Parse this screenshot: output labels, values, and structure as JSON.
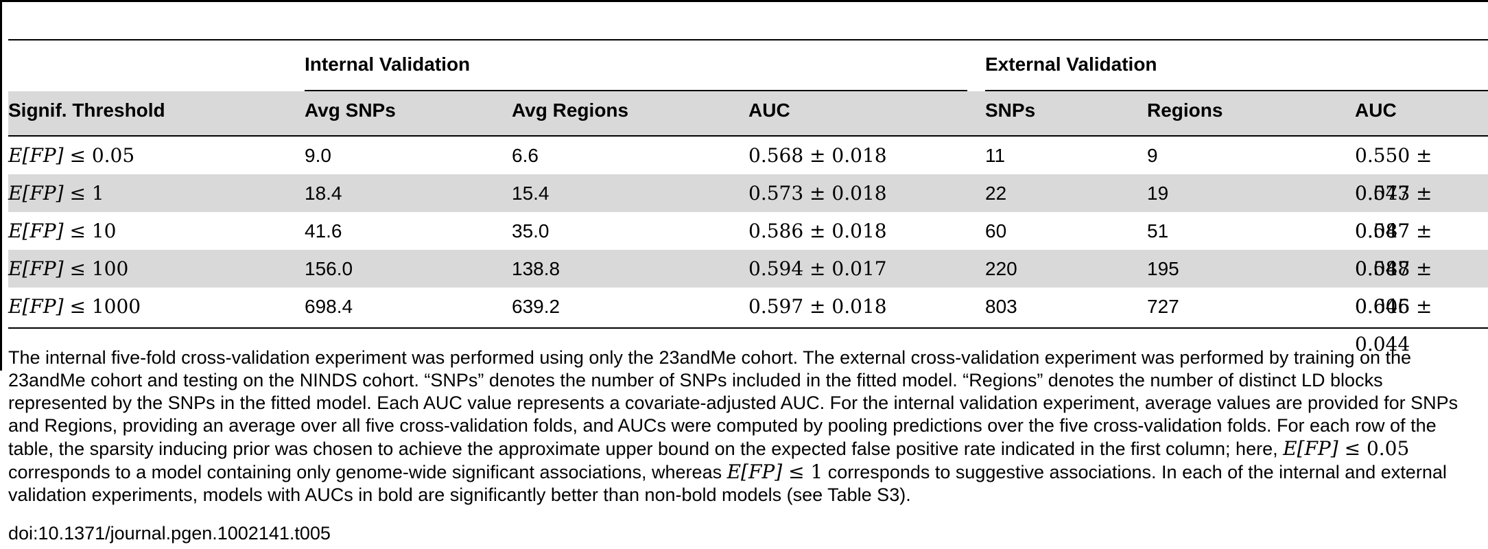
{
  "table": {
    "group_headers": {
      "internal": "Internal Validation",
      "external": "External Validation"
    },
    "columns": {
      "threshold": "Signif. Threshold",
      "avg_snps": "Avg SNPs",
      "avg_regions": "Avg Regions",
      "int_auc": "AUC",
      "snps": "SNPs",
      "regions": "Regions",
      "ext_auc": "AUC"
    },
    "rows": [
      {
        "threshold_var": "E[FP]",
        "threshold_op": "≤",
        "threshold_val": "0.05",
        "avg_snps": "9.0",
        "avg_regions": "6.6",
        "int_auc": "0.568 ± 0.018",
        "snps": "11",
        "regions": "9",
        "ext_auc": "0.550 ± 0.047"
      },
      {
        "threshold_var": "E[FP]",
        "threshold_op": "≤",
        "threshold_val": "1",
        "avg_snps": "18.4",
        "avg_regions": "15.4",
        "int_auc": "0.573 ± 0.018",
        "snps": "22",
        "regions": "19",
        "ext_auc": "0.573 ± 0.047"
      },
      {
        "threshold_var": "E[FP]",
        "threshold_op": "≤",
        "threshold_val": "10",
        "avg_snps": "41.6",
        "avg_regions": "35.0",
        "int_auc": "0.586 ± 0.018",
        "snps": "60",
        "regions": "51",
        "ext_auc": "0.587 ± 0.047"
      },
      {
        "threshold_var": "E[FP]",
        "threshold_op": "≤",
        "threshold_val": "100",
        "avg_snps": "156.0",
        "avg_regions": "138.8",
        "int_auc": "0.594 ± 0.017",
        "snps": "220",
        "regions": "195",
        "ext_auc": "0.588 ± 0.046"
      },
      {
        "threshold_var": "E[FP]",
        "threshold_op": "≤",
        "threshold_val": "1000",
        "avg_snps": "698.4",
        "avg_regions": "639.2",
        "int_auc": "0.597 ± 0.018",
        "snps": "803",
        "regions": "727",
        "ext_auc": "0.605 ± 0.044"
      }
    ]
  },
  "caption": {
    "part1": "The internal five-fold cross-validation experiment was performed using only the 23andMe cohort. The external cross-validation experiment was performed by training on the 23andMe cohort and testing on the NINDS cohort. “SNPs” denotes the number of SNPs included in the fitted model. “Regions” denotes the number of distinct LD blocks represented by the SNPs in the fitted model. Each AUC value represents a covariate-adjusted AUC. For the internal validation experiment, average values are provided for SNPs and Regions, providing an average over all five cross-validation folds, and AUCs were computed by pooling predictions over the five cross-validation folds. For each row of the table, the sparsity inducing prior was chosen to achieve the approximate upper bound on the expected false positive rate indicated in the first column; here,",
    "math1_var": "E[FP]",
    "math1_op": "≤",
    "math1_val": "0.05",
    "part2": "corresponds to a model containing only genome-wide significant associations, whereas",
    "math2_var": "E[FP]",
    "math2_op": "≤",
    "math2_val": "1",
    "part3": "corresponds to suggestive associations. In each of the internal and external validation experiments, models with AUCs in bold are significantly better than non-bold models (see Table S3)."
  },
  "doi": "doi:10.1371/journal.pgen.1002141.t005"
}
